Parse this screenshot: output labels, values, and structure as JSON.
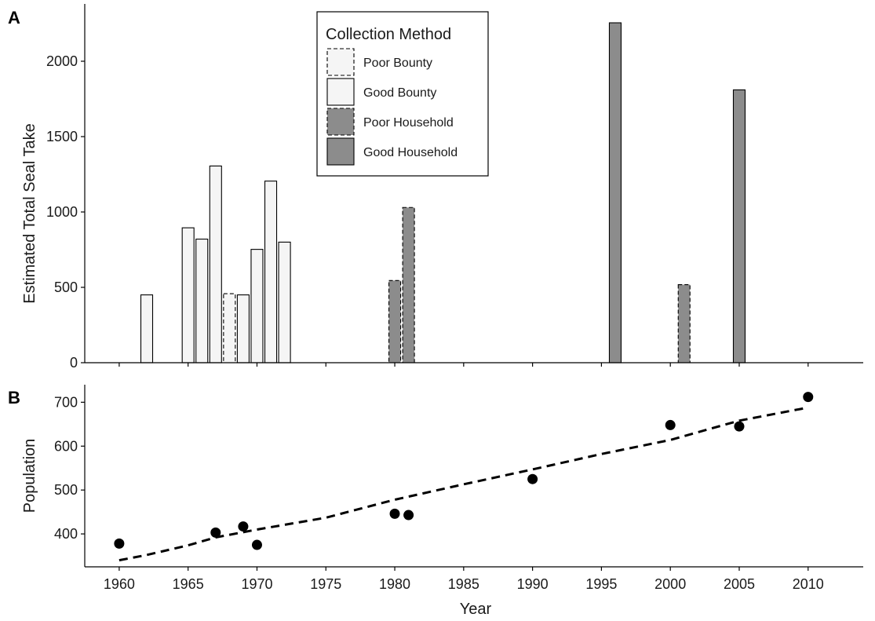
{
  "chart_data": [
    {
      "panel": "A",
      "type": "bar",
      "ylabel": "Estimated Total Seal Take",
      "ylim": [
        0,
        2250
      ],
      "yticks": [
        0,
        500,
        1000,
        1500,
        2000
      ],
      "xlim": [
        1957.5,
        2014
      ],
      "legend": {
        "title": "Collection Method",
        "position": "top-center",
        "entries": [
          {
            "key": "poor_bounty",
            "label": "Poor Bounty",
            "fill": "#f5f5f5",
            "dashed": true
          },
          {
            "key": "good_bounty",
            "label": "Good Bounty",
            "fill": "#f5f5f5",
            "dashed": false
          },
          {
            "key": "poor_household",
            "label": "Poor Household",
            "fill": "#8c8c8c",
            "dashed": true
          },
          {
            "key": "good_household",
            "label": "Good Household",
            "fill": "#8c8c8c",
            "dashed": false
          }
        ]
      },
      "bars": [
        {
          "x": 1962,
          "value": 450,
          "method": "good_bounty"
        },
        {
          "x": 1965,
          "value": 895,
          "method": "good_bounty"
        },
        {
          "x": 1966,
          "value": 820,
          "method": "good_bounty"
        },
        {
          "x": 1967,
          "value": 1305,
          "method": "good_bounty"
        },
        {
          "x": 1968,
          "value": 458,
          "method": "poor_bounty"
        },
        {
          "x": 1969,
          "value": 450,
          "method": "good_bounty"
        },
        {
          "x": 1970,
          "value": 752,
          "method": "good_bounty"
        },
        {
          "x": 1971,
          "value": 1205,
          "method": "good_bounty"
        },
        {
          "x": 1972,
          "value": 800,
          "method": "good_bounty"
        },
        {
          "x": 1980,
          "value": 545,
          "method": "poor_household"
        },
        {
          "x": 1981,
          "value": 1030,
          "method": "poor_household"
        },
        {
          "x": 1996,
          "value": 2255,
          "method": "good_household"
        },
        {
          "x": 2001,
          "value": 518,
          "method": "poor_household"
        },
        {
          "x": 2005,
          "value": 1810,
          "method": "good_household"
        }
      ]
    },
    {
      "panel": "B",
      "type": "scatter",
      "ylabel": "Population",
      "xlabel": "Year",
      "xlim": [
        1957.5,
        2014
      ],
      "ylim": [
        325,
        740
      ],
      "yticks": [
        400,
        500,
        600,
        700
      ],
      "xticks": [
        1960,
        1965,
        1970,
        1975,
        1980,
        1985,
        1990,
        1995,
        2000,
        2005,
        2010
      ],
      "points": [
        {
          "x": 1960,
          "y": 378
        },
        {
          "x": 1967,
          "y": 403
        },
        {
          "x": 1969,
          "y": 417
        },
        {
          "x": 1970,
          "y": 375
        },
        {
          "x": 1980,
          "y": 446
        },
        {
          "x": 1981,
          "y": 443
        },
        {
          "x": 1990,
          "y": 525
        },
        {
          "x": 2000,
          "y": 648
        },
        {
          "x": 2005,
          "y": 645
        },
        {
          "x": 2010,
          "y": 712
        }
      ],
      "trend": {
        "style": "dashed",
        "x": [
          1960,
          1962,
          1965,
          1967,
          1970,
          1975,
          1980,
          1985,
          1990,
          1995,
          2000,
          2005,
          2010
        ],
        "y": [
          340,
          352,
          374,
          392,
          410,
          437,
          478,
          513,
          547,
          582,
          614,
          658,
          688
        ]
      }
    }
  ]
}
